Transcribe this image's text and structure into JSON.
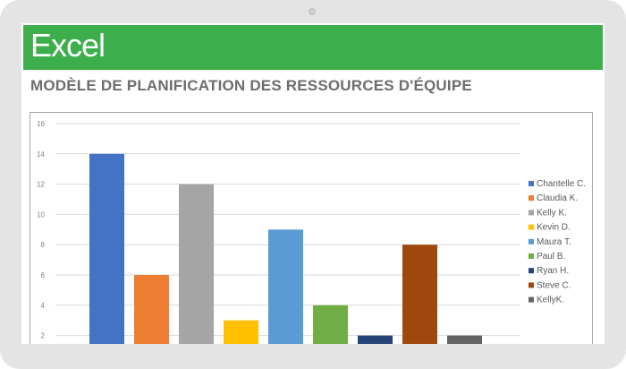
{
  "banner": {
    "title": "Excel",
    "color": "#3cae4c"
  },
  "page_title": "MODÈLE DE PLANIFICATION DES RESSOURCES D'ÉQUIPE",
  "chart_data": {
    "type": "bar",
    "categories": [
      "Chantelle C.",
      "Claudia K.",
      "Kelly K.",
      "Kevin D.",
      "Maura T.",
      "Paul B.",
      "Ryan H.",
      "Steve C.",
      "KellyK."
    ],
    "values": [
      14,
      6,
      12,
      3,
      9,
      4,
      2,
      8,
      2
    ],
    "colors": [
      "#4472c4",
      "#ed7d31",
      "#a5a5a5",
      "#ffc000",
      "#5b9bd5",
      "#70ad47",
      "#264478",
      "#9e480e",
      "#636363"
    ],
    "yticks": [
      "2",
      "4",
      "6",
      "8",
      "10",
      "12",
      "14",
      "16"
    ],
    "ylim": [
      0,
      16
    ],
    "grid": true,
    "legend_position": "right"
  }
}
